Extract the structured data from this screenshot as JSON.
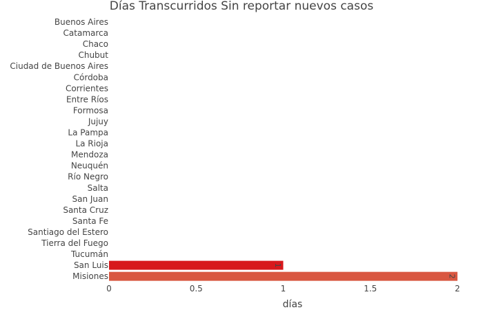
{
  "chart_data": {
    "type": "bar",
    "orientation": "horizontal",
    "title": "Días Transcurridos Sin reportar nuevos casos",
    "xlabel": "días",
    "ylabel": "",
    "xlim": [
      0,
      2
    ],
    "xticks": [
      0,
      0.5,
      1,
      1.5,
      2
    ],
    "xtick_labels": [
      "0",
      "0.5",
      "1",
      "1.5",
      "2"
    ],
    "grid": false,
    "categories": [
      "Buenos Aires",
      "Catamarca",
      "Chaco",
      "Chubut",
      "Ciudad de Buenos Aires",
      "Córdoba",
      "Corrientes",
      "Entre Ríos",
      "Formosa",
      "Jujuy",
      "La Pampa",
      "La Rioja",
      "Mendoza",
      "Neuquén",
      "Río Negro",
      "Salta",
      "San Juan",
      "Santa Cruz",
      "Santa Fe",
      "Santiago del Estero",
      "Tierra del Fuego",
      "Tucumán",
      "San Luis",
      "Misiones"
    ],
    "values": [
      0,
      0,
      0,
      0,
      0,
      0,
      0,
      0,
      0,
      0,
      0,
      0,
      0,
      0,
      0,
      0,
      0,
      0,
      0,
      0,
      0,
      0,
      1,
      2
    ],
    "data_labels": [
      "",
      "",
      "",
      "",
      "",
      "",
      "",
      "",
      "",
      "",
      "",
      "",
      "",
      "",
      "",
      "",
      "",
      "",
      "",
      "",
      "",
      "",
      "1",
      "2"
    ],
    "bar_colors": [
      "#c81d25",
      "#c81d25",
      "#c81d25",
      "#c81d25",
      "#c81d25",
      "#c81d25",
      "#c81d25",
      "#c81d25",
      "#c81d25",
      "#c81d25",
      "#c81d25",
      "#c81d25",
      "#c81d25",
      "#c81d25",
      "#c81d25",
      "#c81d25",
      "#c81d25",
      "#c81d25",
      "#c81d25",
      "#c81d25",
      "#c81d25",
      "#c81d25",
      "#d7191c",
      "#d95741"
    ]
  }
}
